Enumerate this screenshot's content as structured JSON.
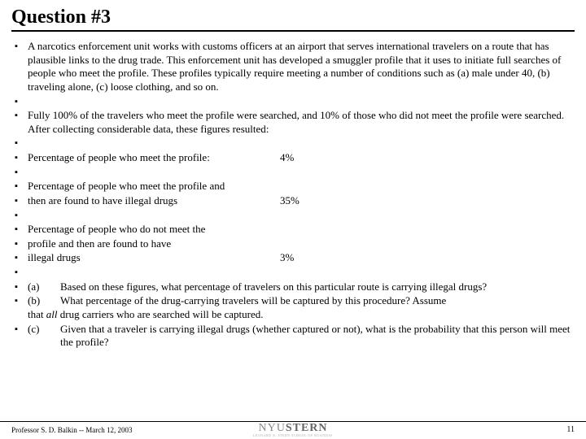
{
  "title": "Question #3",
  "bullet_char": "▪",
  "para1": "A narcotics enforcement unit works with customs officers at an airport that serves international travelers on a route that has plausible links to the drug trade.  This enforcement unit has developed a smuggler profile that it uses to initiate full searches of people who meet the profile.  These profiles typically require meeting a number of conditions such as (a) male under 40, (b) traveling alone, (c) loose clothing, and so on.",
  "para2": "Fully 100% of the travelers who meet the profile were searched, and 10% of those who did not meet the profile were searched.  After collecting considerable data, these figures resulted:",
  "stat1_label": "Percentage of people who meet the profile:",
  "stat1_val": "4%",
  "stat2_line1": "Percentage of people who meet the profile and",
  "stat2_line2": "then are found to have illegal drugs",
  "stat2_val": "35%",
  "stat3_line1": "Percentage of people who do not meet the",
  "stat3_line2": "profile and then are found to have",
  "stat3_line3": "illegal drugs",
  "stat3_val": "3%",
  "qa_letter": "(a)",
  "qa_text": "Based on these figures, what percentage of travelers on this particular route is carrying illegal drugs?",
  "qb_letter": "(b)",
  "qb_text_pre": "What percentage of the drug-carrying travelers will be captured by this procedure?   Assume that ",
  "qb_text_ital": "all",
  "qb_text_post": " drug carriers who are searched will be captured.",
  "qc_letter": "(c)",
  "qc_text": "Given that a traveler is carrying illegal drugs (whether captured or not), what is the probability that this person will meet the profile?",
  "footer_left": "Professor S. D. Balkin -- March 12, 2003",
  "logo_nyu": "NYU",
  "logo_stern": "STERN",
  "logo_sub": "LEONARD N. STERN SCHOOL OF BUSINESS",
  "page_num": "11"
}
